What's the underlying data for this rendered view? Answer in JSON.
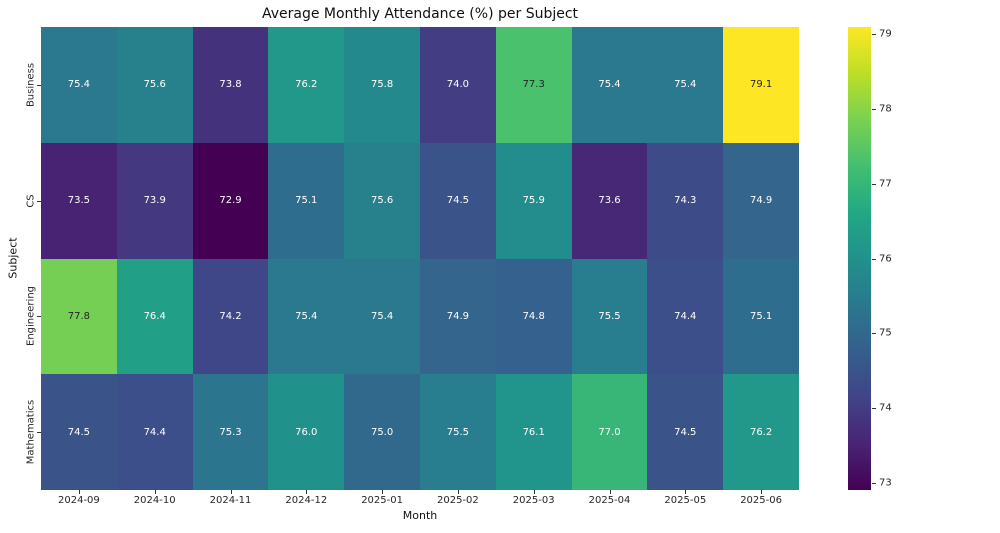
{
  "chart_data": {
    "type": "heatmap",
    "title": "Average Monthly Attendance (%) per Subject",
    "xlabel": "Month",
    "ylabel": "Subject",
    "x_categories": [
      "2024-09",
      "2024-10",
      "2024-11",
      "2024-12",
      "2025-01",
      "2025-02",
      "2025-03",
      "2025-04",
      "2025-05",
      "2025-06"
    ],
    "y_categories": [
      "Business",
      "CS",
      "Engineering",
      "Mathematics"
    ],
    "series": [
      {
        "name": "Business",
        "values": [
          75.4,
          75.6,
          73.8,
          76.2,
          75.8,
          74.0,
          77.3,
          75.4,
          75.4,
          79.1
        ]
      },
      {
        "name": "CS",
        "values": [
          73.5,
          73.9,
          72.9,
          75.1,
          75.6,
          74.5,
          75.9,
          73.6,
          74.3,
          74.9
        ]
      },
      {
        "name": "Engineering",
        "values": [
          77.8,
          76.4,
          74.2,
          75.4,
          75.4,
          74.9,
          74.8,
          75.5,
          74.4,
          75.1
        ]
      },
      {
        "name": "Mathematics",
        "values": [
          74.5,
          74.4,
          75.3,
          76.0,
          75.0,
          75.5,
          76.1,
          77.0,
          74.5,
          76.2
        ]
      }
    ],
    "annotations_decimals": 1,
    "vmin": 72.9,
    "vmax": 79.1,
    "colormap": "viridis",
    "colormap_stops": [
      "#440154",
      "#482475",
      "#414487",
      "#355f8d",
      "#2a788e",
      "#21918c",
      "#22a884",
      "#44bf70",
      "#7ad151",
      "#bddf26",
      "#fde725"
    ],
    "colorbar_ticks": [
      79,
      78,
      77,
      76,
      75,
      74,
      73
    ],
    "colorbar_position": "right",
    "annotation_color_light": "#ffffff",
    "annotation_color_dark": "#262626",
    "grid": false
  }
}
